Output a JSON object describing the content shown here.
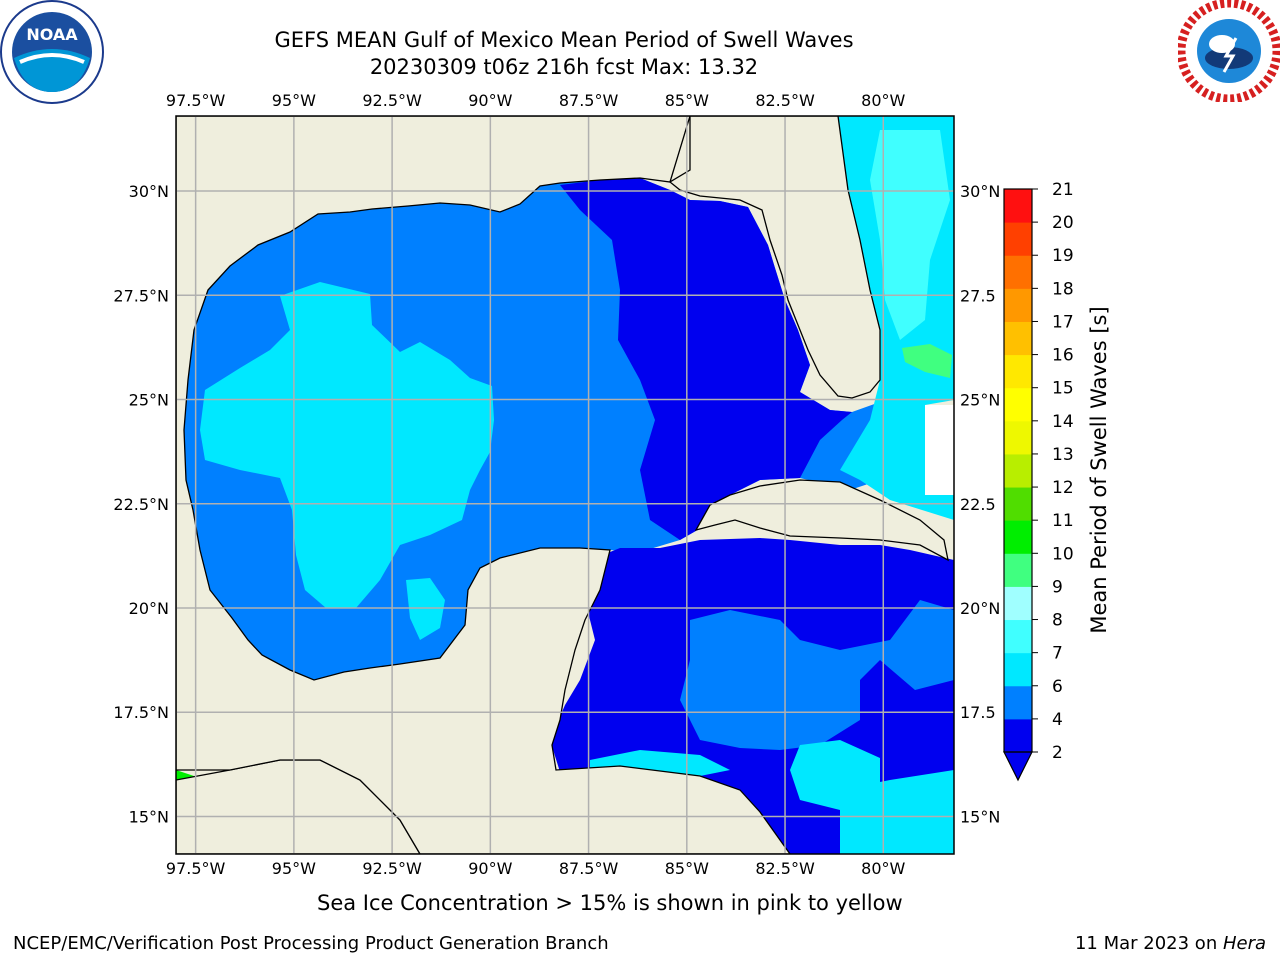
{
  "title": {
    "line1": "GEFS MEAN Gulf of Mexico Mean Period of Swell Waves",
    "line2": "20230309 t06z 216h fcst   Max: 13.32"
  },
  "logos": {
    "left": "noaa-logo",
    "right": "national-weather-service-logo"
  },
  "map": {
    "extent": {
      "lon": [
        -98.0,
        -78.2
      ],
      "lat": [
        14.1,
        31.8
      ]
    },
    "lon_ticks": [
      "97.5°W",
      "95°W",
      "92.5°W",
      "90°W",
      "87.5°W",
      "85°W",
      "82.5°W",
      "80°W"
    ],
    "lat_ticks": [
      "30°N",
      "27.5°N",
      "25°N",
      "22.5°N",
      "20°N",
      "17.5°N",
      "15°N"
    ],
    "lat_ticks_right": [
      "30°N",
      "27.5",
      "25°N",
      "22.5",
      "20°N",
      "17.5",
      "15°N"
    ],
    "land_color": "#efeedd",
    "gridlines": true
  },
  "colorbar": {
    "label": "Mean Period of Swell Waves [s]",
    "ticks": [
      "2",
      "4",
      "6",
      "7",
      "8",
      "9",
      "10",
      "11",
      "12",
      "13",
      "14",
      "15",
      "16",
      "17",
      "18",
      "19",
      "20",
      "21"
    ],
    "colors": [
      "#0000ef",
      "#0080ff",
      "#00e8ff",
      "#40ffff",
      "#a0ffff",
      "#40ff80",
      "#00ee00",
      "#50dd00",
      "#b8ee00",
      "#eef800",
      "#ffff00",
      "#ffe800",
      "#ffc000",
      "#ff9800",
      "#ff7000",
      "#ff4000",
      "#ff1010"
    ],
    "extend_color": "#0000ef"
  },
  "notes": {
    "sea_ice": "Sea Ice Concentration > 15% is shown in pink to yellow"
  },
  "footer": {
    "left": "NCEP/EMC/Verification Post Processing Product Generation Branch",
    "right_date": "11 Mar 2023 on ",
    "right_host": "Hera"
  }
}
